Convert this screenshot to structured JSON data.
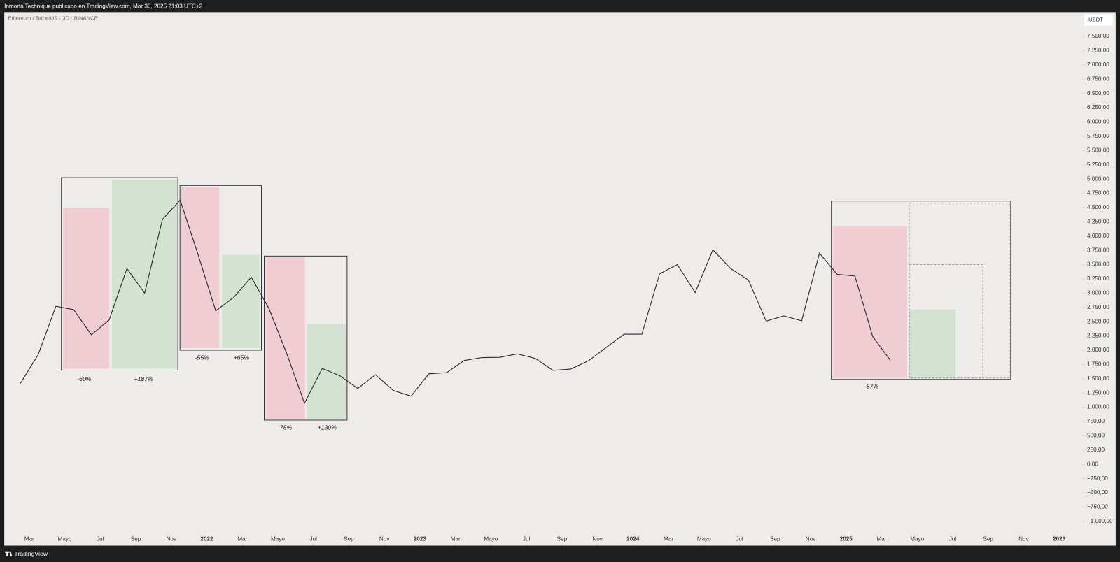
{
  "header": {
    "publisher": "InmortalTechnique publicado en TradingView.com, Mar 30, 2025 21:03 UTC+2",
    "footer": "TradingView"
  },
  "chart_data": {
    "type": "line",
    "title": "Ethereum / TetherUS · 3D · BINANCE",
    "currency": "USDT",
    "color": "#2a2a2e",
    "x": [
      "2021-02",
      "2021-03",
      "2021-04",
      "2021-05",
      "2021-06",
      "2021-07",
      "2021-08",
      "2021-09",
      "2021-10",
      "2021-11",
      "2021-12",
      "2022-01",
      "2022-02",
      "2022-03",
      "2022-04",
      "2022-05",
      "2022-06",
      "2022-07",
      "2022-08",
      "2022-09",
      "2022-10",
      "2022-11",
      "2022-12",
      "2023-01",
      "2023-02",
      "2023-03",
      "2023-04",
      "2023-05",
      "2023-06",
      "2023-07",
      "2023-08",
      "2023-09",
      "2023-10",
      "2023-11",
      "2023-12",
      "2024-01",
      "2024-02",
      "2024-03",
      "2024-04",
      "2024-05",
      "2024-06",
      "2024-07",
      "2024-08",
      "2024-09",
      "2024-10",
      "2024-11",
      "2024-12",
      "2025-01",
      "2025-02",
      "2025-03"
    ],
    "values": [
      1420,
      1920,
      2770,
      2710,
      2270,
      2530,
      3430,
      3000,
      4290,
      4630,
      3680,
      2690,
      2920,
      3280,
      2730,
      1940,
      1070,
      1680,
      1550,
      1330,
      1570,
      1295,
      1195,
      1585,
      1605,
      1820,
      1870,
      1875,
      1935,
      1855,
      1645,
      1670,
      1815,
      2050,
      2280,
      2280,
      3340,
      3500,
      3010,
      3760,
      3430,
      3230,
      2510,
      2600,
      2515,
      3700,
      3330,
      3300,
      2240,
      1820
    ],
    "ylim": [
      -1425,
      7925
    ],
    "yticks": [
      {
        "value": -1000,
        "label": "−1.000,00"
      },
      {
        "value": -750,
        "label": "−750,00"
      },
      {
        "value": -500,
        "label": "−500,00"
      },
      {
        "value": -250,
        "label": "−250,00"
      },
      {
        "value": 0,
        "label": "0,00"
      },
      {
        "value": 250,
        "label": "250,00"
      },
      {
        "value": 500,
        "label": "500,00"
      },
      {
        "value": 750,
        "label": "750,00"
      },
      {
        "value": 1000,
        "label": "1.000,00"
      },
      {
        "value": 1250,
        "label": "1.250,00"
      },
      {
        "value": 1500,
        "label": "1.500,00"
      },
      {
        "value": 1750,
        "label": "1.750,00"
      },
      {
        "value": 2000,
        "label": "2.000,00"
      },
      {
        "value": 2250,
        "label": "2.250,00"
      },
      {
        "value": 2500,
        "label": "2.500,00"
      },
      {
        "value": 2750,
        "label": "2.750,00"
      },
      {
        "value": 3000,
        "label": "3.000,00"
      },
      {
        "value": 3250,
        "label": "3.250,00"
      },
      {
        "value": 3500,
        "label": "3.500,00"
      },
      {
        "value": 3750,
        "label": "3.750,00"
      },
      {
        "value": 4000,
        "label": "4.000,00"
      },
      {
        "value": 4250,
        "label": "4.250,00"
      },
      {
        "value": 4500,
        "label": "4.500,00"
      },
      {
        "value": 4750,
        "label": "4.750,00"
      },
      {
        "value": 5000,
        "label": "5.000,00"
      },
      {
        "value": 5250,
        "label": "5.250,00"
      },
      {
        "value": 5500,
        "label": "5.500,00"
      },
      {
        "value": 5750,
        "label": "5.750,00"
      },
      {
        "value": 6000,
        "label": "6.000,00"
      },
      {
        "value": 6250,
        "label": "6.250,00"
      },
      {
        "value": 6500,
        "label": "6.500,00"
      },
      {
        "value": 6750,
        "label": "6.750,00"
      },
      {
        "value": 7000,
        "label": "7.000,00"
      },
      {
        "value": 7250,
        "label": "7.250,00"
      },
      {
        "value": 7500,
        "label": "7.500,00"
      }
    ],
    "xticks": [
      {
        "value": "2021-03",
        "label": "Mar"
      },
      {
        "value": "2021-05",
        "label": "Mayo"
      },
      {
        "value": "2021-07",
        "label": "Jul"
      },
      {
        "value": "2021-09",
        "label": "Sep"
      },
      {
        "value": "2021-11",
        "label": "Nov"
      },
      {
        "value": "2022-01",
        "label": "2022"
      },
      {
        "value": "2022-03",
        "label": "Mar"
      },
      {
        "value": "2022-05",
        "label": "Mayo"
      },
      {
        "value": "2022-07",
        "label": "Jul"
      },
      {
        "value": "2022-09",
        "label": "Sep"
      },
      {
        "value": "2022-11",
        "label": "Nov"
      },
      {
        "value": "2023-01",
        "label": "2023"
      },
      {
        "value": "2023-03",
        "label": "Mar"
      },
      {
        "value": "2023-05",
        "label": "Mayo"
      },
      {
        "value": "2023-07",
        "label": "Jul"
      },
      {
        "value": "2023-09",
        "label": "Sep"
      },
      {
        "value": "2023-11",
        "label": "Nov"
      },
      {
        "value": "2024-01",
        "label": "2024"
      },
      {
        "value": "2024-03",
        "label": "Mar"
      },
      {
        "value": "2024-05",
        "label": "Mayo"
      },
      {
        "value": "2024-07",
        "label": "Jul"
      },
      {
        "value": "2024-09",
        "label": "Sep"
      },
      {
        "value": "2024-11",
        "label": "Nov"
      },
      {
        "value": "2025-01",
        "label": "2025"
      },
      {
        "value": "2025-03",
        "label": "Mar"
      },
      {
        "value": "2025-05",
        "label": "Mayo"
      },
      {
        "value": "2025-07",
        "label": "Jul"
      },
      {
        "value": "2025-09",
        "label": "Sep"
      },
      {
        "value": "2025-11",
        "label": "Nov"
      },
      {
        "value": "2026-01",
        "label": "2026"
      }
    ],
    "annotations": [
      "-60%",
      "+187%",
      "-55%",
      "+65%",
      "-75%",
      "+130%",
      "-57%"
    ]
  }
}
